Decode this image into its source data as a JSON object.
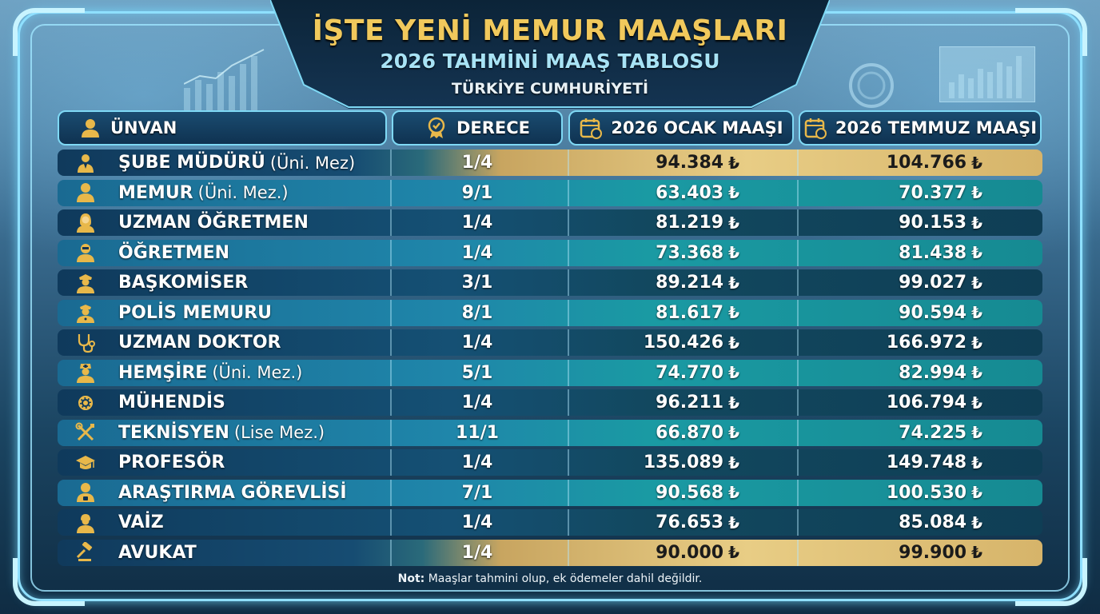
{
  "title": {
    "main": "İŞTE YENİ MEMUR MAAŞLARI",
    "sub": "2026 TAHMİNİ MAAŞ TABLOSU",
    "country": "TÜRKİYE CUMHURİYETİ"
  },
  "headers": {
    "title": "ÜNVAN",
    "grade": "DERECE",
    "january": "2026 OCAK MAAŞI",
    "july": "2026 TEMMUZ MAAŞI"
  },
  "currency_symbol": "₺",
  "rows": [
    {
      "title": "ŞUBE MÜDÜRÜ",
      "suffix": "(Üni. Mez)",
      "grade": "1/4",
      "january": "94.384",
      "july": "104.766",
      "icon": "manager-icon",
      "style": "gold"
    },
    {
      "title": "MEMUR",
      "suffix": "(Üni. Mez.)",
      "grade": "9/1",
      "january": "63.403",
      "july": "70.377",
      "icon": "person-icon",
      "style": "light"
    },
    {
      "title": "UZMAN ÖĞRETMEN",
      "suffix": "",
      "grade": "1/4",
      "january": "81.219",
      "july": "90.153",
      "icon": "female-teacher-icon",
      "style": "dark"
    },
    {
      "title": "ÖĞRETMEN",
      "suffix": "",
      "grade": "1/4",
      "january": "73.368",
      "july": "81.438",
      "icon": "teacher-icon",
      "style": "light"
    },
    {
      "title": "BAŞKOMİSER",
      "suffix": "",
      "grade": "3/1",
      "january": "89.214",
      "july": "99.027",
      "icon": "police-chief-icon",
      "style": "dark"
    },
    {
      "title": "POLİS MEMURU",
      "suffix": "",
      "grade": "8/1",
      "january": "81.617",
      "july": "90.594",
      "icon": "police-icon",
      "style": "light"
    },
    {
      "title": "UZMAN DOKTOR",
      "suffix": "",
      "grade": "1/4",
      "january": "150.426",
      "july": "166.972",
      "icon": "stethoscope-icon",
      "style": "dark"
    },
    {
      "title": "HEMŞİRE",
      "suffix": "(Üni. Mez.)",
      "grade": "5/1",
      "january": "74.770",
      "july": "82.994",
      "icon": "nurse-icon",
      "style": "light"
    },
    {
      "title": "MÜHENDİS",
      "suffix": "",
      "grade": "1/4",
      "january": "96.211",
      "july": "106.794",
      "icon": "gear-icon",
      "style": "dark"
    },
    {
      "title": "TEKNİSYEN",
      "suffix": "(Lise Mez.)",
      "grade": "11/1",
      "january": "66.870",
      "july": "74.225",
      "icon": "tools-icon",
      "style": "light"
    },
    {
      "title": "PROFESÖR",
      "suffix": "",
      "grade": "1/4",
      "january": "135.089",
      "july": "149.748",
      "icon": "graduation-cap-icon",
      "style": "dark"
    },
    {
      "title": "ARAŞTIRMA GÖREVLİSİ",
      "suffix": "",
      "grade": "7/1",
      "january": "90.568",
      "july": "100.530",
      "icon": "researcher-icon",
      "style": "light"
    },
    {
      "title": "VAİZ",
      "suffix": "",
      "grade": "1/4",
      "january": "76.653",
      "july": "85.084",
      "icon": "preacher-icon",
      "style": "dark"
    },
    {
      "title": "AVUKAT",
      "suffix": "",
      "grade": "1/4",
      "january": "90.000",
      "july": "99.900",
      "icon": "gavel-icon",
      "style": "gold"
    }
  ],
  "note": {
    "label": "Not:",
    "text": "Maaşlar tahmini olup, ek ödemeler dahil değildir."
  }
}
